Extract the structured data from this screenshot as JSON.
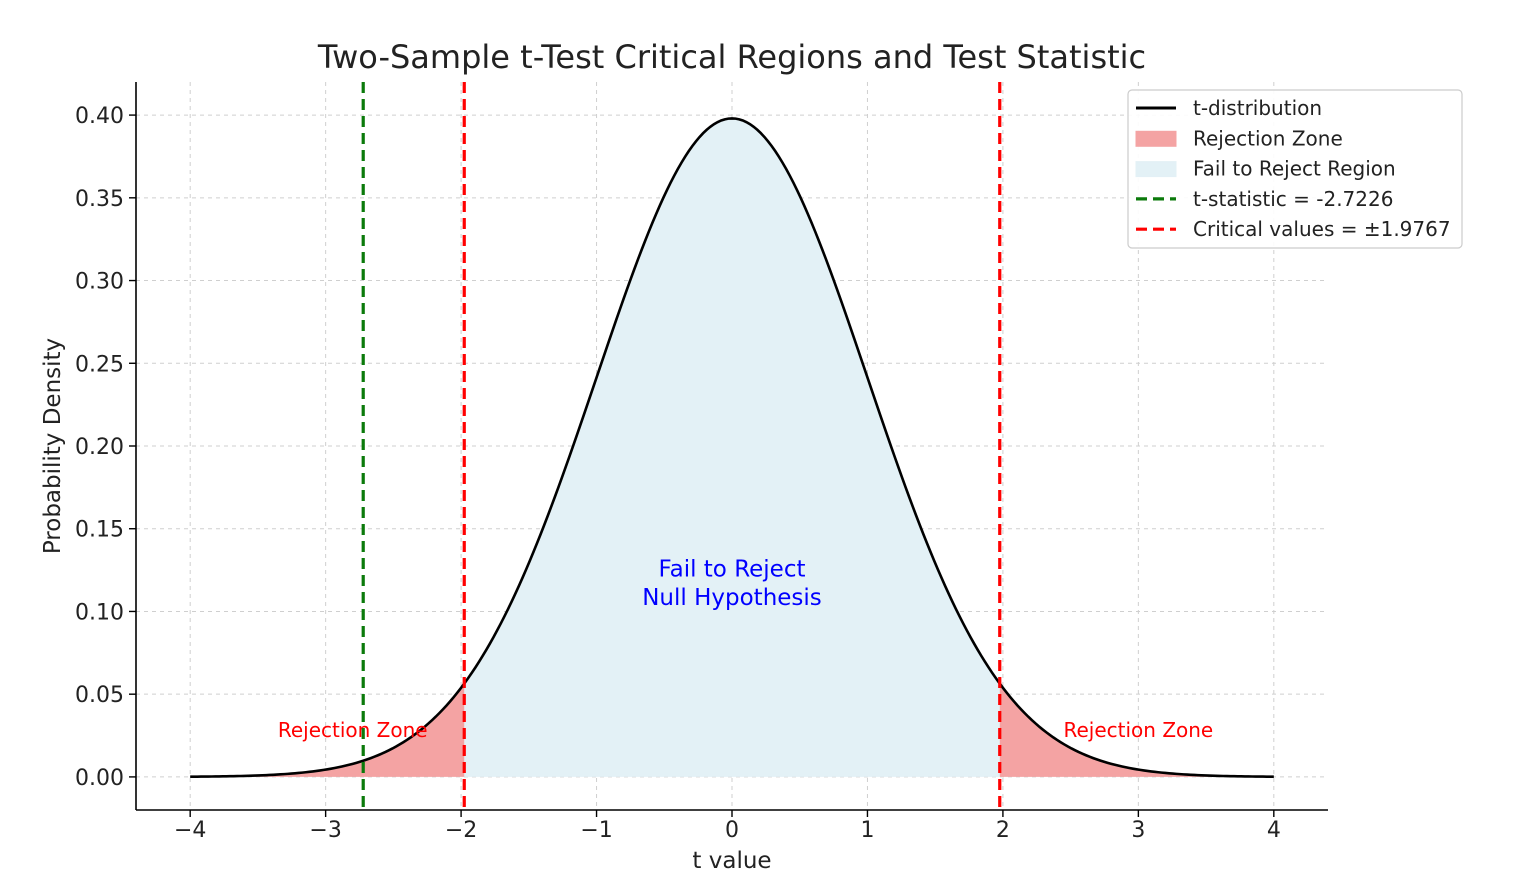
{
  "chart_data": {
    "type": "area",
    "title": "Two-Sample t-Test Critical Regions and Test Statistic",
    "xlabel": "t value",
    "ylabel": "Probability Density",
    "xlim": [
      -4.4,
      4.4
    ],
    "ylim": [
      -0.02,
      0.42
    ],
    "x_ticks": [
      -4,
      -3,
      -2,
      -1,
      0,
      1,
      2,
      3,
      4
    ],
    "x_tick_labels": [
      "−4",
      "−3",
      "−2",
      "−1",
      "0",
      "1",
      "2",
      "3",
      "4"
    ],
    "y_ticks": [
      0.0,
      0.05,
      0.1,
      0.15,
      0.2,
      0.25,
      0.3,
      0.35,
      0.4
    ],
    "y_tick_labels": [
      "0.00",
      "0.05",
      "0.10",
      "0.15",
      "0.20",
      "0.25",
      "0.30",
      "0.35",
      "0.40"
    ],
    "grid": true,
    "legend_position": "top-right",
    "distribution": {
      "name": "t-distribution",
      "x_range": [
        -4,
        4
      ],
      "peak_density": 0.398,
      "color": "#000000"
    },
    "t_statistic": -2.7226,
    "critical_value": 1.9767,
    "colors": {
      "rejection_fill": "#f4a3a3",
      "fail_fill": "#e3f1f6",
      "t_stat_line": "#0b7a0b",
      "critical_line": "#ff0000",
      "annotation_red": "#ff0000",
      "annotation_blue": "#0000ff"
    },
    "legend": [
      {
        "label": "t-distribution",
        "kind": "line",
        "color": "#000000"
      },
      {
        "label": "Rejection Zone",
        "kind": "patch",
        "color": "#f4a3a3"
      },
      {
        "label": "Fail to Reject Region",
        "kind": "patch",
        "color": "#e3f1f6"
      },
      {
        "label": "t-statistic = -2.7226",
        "kind": "dashed",
        "color": "#0b7a0b"
      },
      {
        "label": "Critical values = ±1.9767",
        "kind": "dashed",
        "color": "#ff0000"
      }
    ],
    "annotations": [
      {
        "text": "Rejection Zone",
        "x": -2.8,
        "y": 0.024,
        "color": "#ff0000"
      },
      {
        "text": "Rejection Zone",
        "x": 3.0,
        "y": 0.024,
        "color": "#ff0000"
      },
      {
        "text": "Fail to Reject",
        "x": 0,
        "y": 0.121,
        "color": "#0000ff"
      },
      {
        "text": "Null Hypothesis",
        "x": 0,
        "y": 0.104,
        "color": "#0000ff"
      }
    ]
  }
}
